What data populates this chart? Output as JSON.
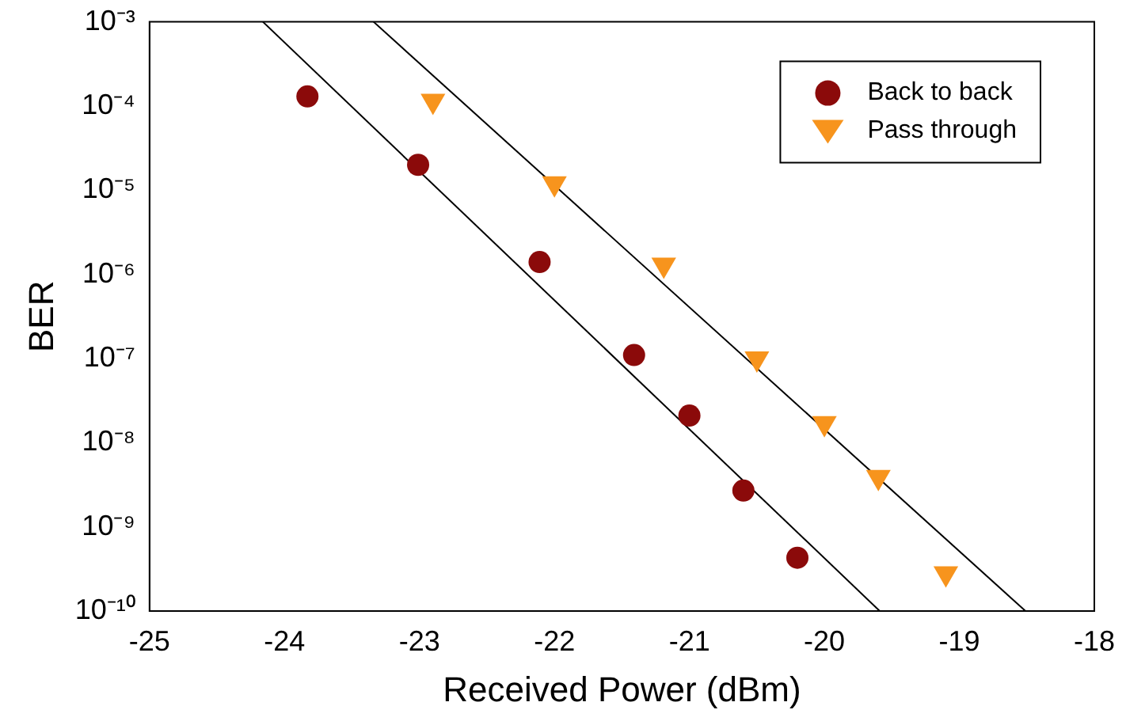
{
  "chart_data": {
    "type": "scatter",
    "xlabel": "Received Power (dBm)",
    "ylabel": "BER",
    "log": "y",
    "grid": false,
    "legend": "top right",
    "xlim": [
      -25,
      -18
    ],
    "xticks": [
      -25,
      -24,
      -23,
      -22,
      -21,
      -20,
      -19,
      -18
    ],
    "ylim": [
      1e-10,
      0.001
    ],
    "yticks": [
      {
        "value": 1e-10,
        "label": "10⁻¹⁰"
      },
      {
        "value": 1e-09,
        "label": "10⁻⁹"
      },
      {
        "value": 1e-08,
        "label": "10⁻⁸"
      },
      {
        "value": 1e-07,
        "label": "10⁻⁷"
      },
      {
        "value": 1e-06,
        "label": "10⁻⁶"
      },
      {
        "value": 1e-05,
        "label": "10⁻⁵"
      },
      {
        "value": 0.0001,
        "label": "10⁻⁴"
      },
      {
        "value": 0.001,
        "label": "10⁻³"
      }
    ],
    "series": [
      {
        "name": "Back to back",
        "marker": "circle",
        "color": "#8b0a0a",
        "x": [
          -23.83,
          -23.01,
          -22.11,
          -21.41,
          -21.0,
          -20.6,
          -20.2
        ],
        "values": [
          0.00013,
          2e-05,
          1.4e-06,
          1.1e-07,
          2.1e-08,
          2.7e-09,
          4.3e-10
        ]
      },
      {
        "name": "Pass through",
        "marker": "triangle",
        "color": "#f7941d",
        "x": [
          -22.9,
          -22.0,
          -21.19,
          -20.5,
          -20.0,
          -19.6,
          -19.1
        ],
        "values": [
          0.000115,
          1.2e-05,
          1.3e-06,
          1e-07,
          1.7e-08,
          3.9e-09,
          2.8e-10
        ]
      },
      {
        "type": "line",
        "marker": "none",
        "color": "#000000",
        "x": [
          -24.16,
          -19.59
        ],
        "values": [
          0.001,
          1e-10
        ]
      },
      {
        "type": "line",
        "marker": "none",
        "color": "#000000",
        "x": [
          -23.34,
          -18.51
        ],
        "values": [
          0.001,
          1e-10
        ]
      }
    ]
  }
}
